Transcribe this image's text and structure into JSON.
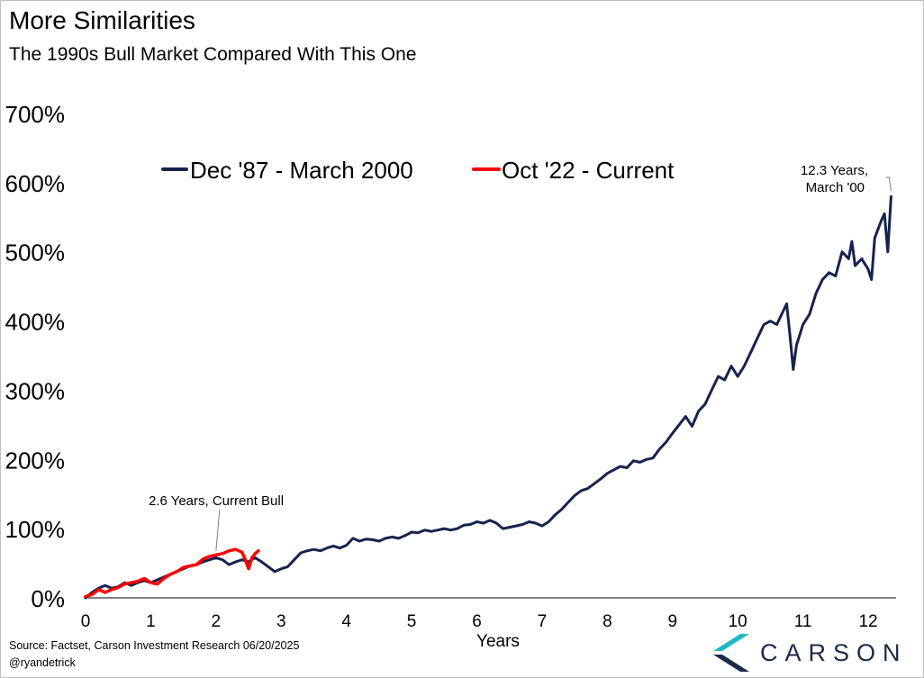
{
  "header": {
    "title": "More Similarities",
    "subtitle": "The 1990s Bull Market Compared With This One"
  },
  "footer": {
    "source": "Source: Factset, Carson Investment Research 06/20/2025",
    "handle": "@ryandetrick"
  },
  "brand": {
    "name": "CARSON",
    "icon": "carson-chevron-logo-icon"
  },
  "colors": {
    "series_1990s": "#16234d",
    "series_current": "#ff0000",
    "axis": "#000000",
    "logo_teal": "#1fb8c6",
    "logo_navy": "#1a2b4a"
  },
  "chart_data": {
    "type": "line",
    "title": "",
    "xlabel": "Years",
    "ylabel": "",
    "xlim": [
      0,
      12.4
    ],
    "ylim": [
      0,
      700
    ],
    "x_ticks": [
      0,
      1,
      2,
      3,
      4,
      5,
      6,
      7,
      8,
      9,
      10,
      11,
      12
    ],
    "x_tick_labels": [
      "0",
      "1",
      "2",
      "3",
      "4",
      "5",
      "6",
      "7",
      "8",
      "9",
      "10",
      "11",
      "12"
    ],
    "y_ticks": [
      0,
      100,
      200,
      300,
      400,
      500,
      600,
      700
    ],
    "y_tick_labels": [
      "0%",
      "100%",
      "200%",
      "300%",
      "400%",
      "500%",
      "600%",
      "700%"
    ],
    "grid": false,
    "legend_position": "top-center",
    "series": [
      {
        "name": "Dec '87 - March 2000",
        "color": "#16234d",
        "points": [
          [
            0,
            0
          ],
          [
            0.1,
            8
          ],
          [
            0.2,
            14
          ],
          [
            0.3,
            18
          ],
          [
            0.4,
            14
          ],
          [
            0.5,
            16
          ],
          [
            0.6,
            22
          ],
          [
            0.7,
            18
          ],
          [
            0.8,
            22
          ],
          [
            0.9,
            25
          ],
          [
            1.0,
            22
          ],
          [
            1.1,
            26
          ],
          [
            1.2,
            30
          ],
          [
            1.3,
            34
          ],
          [
            1.4,
            38
          ],
          [
            1.5,
            42
          ],
          [
            1.6,
            46
          ],
          [
            1.7,
            48
          ],
          [
            1.8,
            52
          ],
          [
            1.9,
            55
          ],
          [
            2.0,
            58
          ],
          [
            2.1,
            55
          ],
          [
            2.2,
            48
          ],
          [
            2.3,
            52
          ],
          [
            2.4,
            55
          ],
          [
            2.5,
            52
          ],
          [
            2.6,
            58
          ],
          [
            2.7,
            52
          ],
          [
            2.8,
            45
          ],
          [
            2.9,
            38
          ],
          [
            3.0,
            42
          ],
          [
            3.1,
            45
          ],
          [
            3.2,
            55
          ],
          [
            3.3,
            65
          ],
          [
            3.4,
            68
          ],
          [
            3.5,
            70
          ],
          [
            3.6,
            68
          ],
          [
            3.7,
            72
          ],
          [
            3.8,
            75
          ],
          [
            3.9,
            72
          ],
          [
            4.0,
            76
          ],
          [
            4.1,
            86
          ],
          [
            4.2,
            82
          ],
          [
            4.3,
            85
          ],
          [
            4.4,
            84
          ],
          [
            4.5,
            82
          ],
          [
            4.6,
            86
          ],
          [
            4.7,
            88
          ],
          [
            4.8,
            86
          ],
          [
            4.9,
            90
          ],
          [
            5.0,
            95
          ],
          [
            5.1,
            94
          ],
          [
            5.2,
            98
          ],
          [
            5.3,
            96
          ],
          [
            5.4,
            98
          ],
          [
            5.5,
            100
          ],
          [
            5.6,
            98
          ],
          [
            5.7,
            100
          ],
          [
            5.8,
            105
          ],
          [
            5.9,
            106
          ],
          [
            6.0,
            110
          ],
          [
            6.1,
            108
          ],
          [
            6.2,
            112
          ],
          [
            6.3,
            108
          ],
          [
            6.4,
            100
          ],
          [
            6.5,
            102
          ],
          [
            6.6,
            104
          ],
          [
            6.7,
            106
          ],
          [
            6.8,
            110
          ],
          [
            6.9,
            108
          ],
          [
            7.0,
            104
          ],
          [
            7.1,
            110
          ],
          [
            7.2,
            120
          ],
          [
            7.3,
            128
          ],
          [
            7.4,
            138
          ],
          [
            7.5,
            148
          ],
          [
            7.6,
            155
          ],
          [
            7.7,
            158
          ],
          [
            7.8,
            165
          ],
          [
            7.9,
            172
          ],
          [
            8.0,
            180
          ],
          [
            8.1,
            185
          ],
          [
            8.2,
            190
          ],
          [
            8.3,
            188
          ],
          [
            8.4,
            198
          ],
          [
            8.5,
            196
          ],
          [
            8.6,
            200
          ],
          [
            8.7,
            202
          ],
          [
            8.8,
            215
          ],
          [
            8.9,
            225
          ],
          [
            9.0,
            238
          ],
          [
            9.1,
            250
          ],
          [
            9.2,
            262
          ],
          [
            9.3,
            248
          ],
          [
            9.4,
            270
          ],
          [
            9.5,
            280
          ],
          [
            9.6,
            300
          ],
          [
            9.7,
            320
          ],
          [
            9.8,
            315
          ],
          [
            9.9,
            335
          ],
          [
            10.0,
            320
          ],
          [
            10.1,
            335
          ],
          [
            10.2,
            355
          ],
          [
            10.3,
            375
          ],
          [
            10.4,
            395
          ],
          [
            10.5,
            400
          ],
          [
            10.6,
            395
          ],
          [
            10.7,
            415
          ],
          [
            10.75,
            425
          ],
          [
            10.8,
            380
          ],
          [
            10.85,
            330
          ],
          [
            10.9,
            365
          ],
          [
            11.0,
            395
          ],
          [
            11.1,
            410
          ],
          [
            11.2,
            440
          ],
          [
            11.3,
            460
          ],
          [
            11.4,
            470
          ],
          [
            11.5,
            465
          ],
          [
            11.6,
            500
          ],
          [
            11.7,
            490
          ],
          [
            11.75,
            515
          ],
          [
            11.8,
            480
          ],
          [
            11.9,
            490
          ],
          [
            12.0,
            475
          ],
          [
            12.05,
            460
          ],
          [
            12.1,
            520
          ],
          [
            12.2,
            545
          ],
          [
            12.25,
            555
          ],
          [
            12.3,
            500
          ],
          [
            12.35,
            580
          ]
        ]
      },
      {
        "name": "Oct '22 - Current",
        "color": "#ff0000",
        "points": [
          [
            0,
            2
          ],
          [
            0.1,
            5
          ],
          [
            0.2,
            12
          ],
          [
            0.3,
            8
          ],
          [
            0.4,
            12
          ],
          [
            0.5,
            15
          ],
          [
            0.6,
            20
          ],
          [
            0.7,
            22
          ],
          [
            0.8,
            24
          ],
          [
            0.9,
            28
          ],
          [
            1.0,
            22
          ],
          [
            1.1,
            20
          ],
          [
            1.2,
            28
          ],
          [
            1.3,
            34
          ],
          [
            1.4,
            38
          ],
          [
            1.5,
            44
          ],
          [
            1.6,
            46
          ],
          [
            1.7,
            48
          ],
          [
            1.8,
            56
          ],
          [
            1.9,
            60
          ],
          [
            2.0,
            62
          ],
          [
            2.1,
            64
          ],
          [
            2.2,
            68
          ],
          [
            2.3,
            70
          ],
          [
            2.4,
            66
          ],
          [
            2.45,
            55
          ],
          [
            2.5,
            42
          ],
          [
            2.55,
            58
          ],
          [
            2.6,
            64
          ],
          [
            2.65,
            68
          ]
        ]
      }
    ],
    "annotations": [
      {
        "text": "2.6 Years, Current Bull",
        "x": 2.0,
        "y": 60
      },
      {
        "text_lines": [
          "12.3 Years,",
          "March '00"
        ],
        "x": 12.35,
        "y": 580
      }
    ]
  }
}
